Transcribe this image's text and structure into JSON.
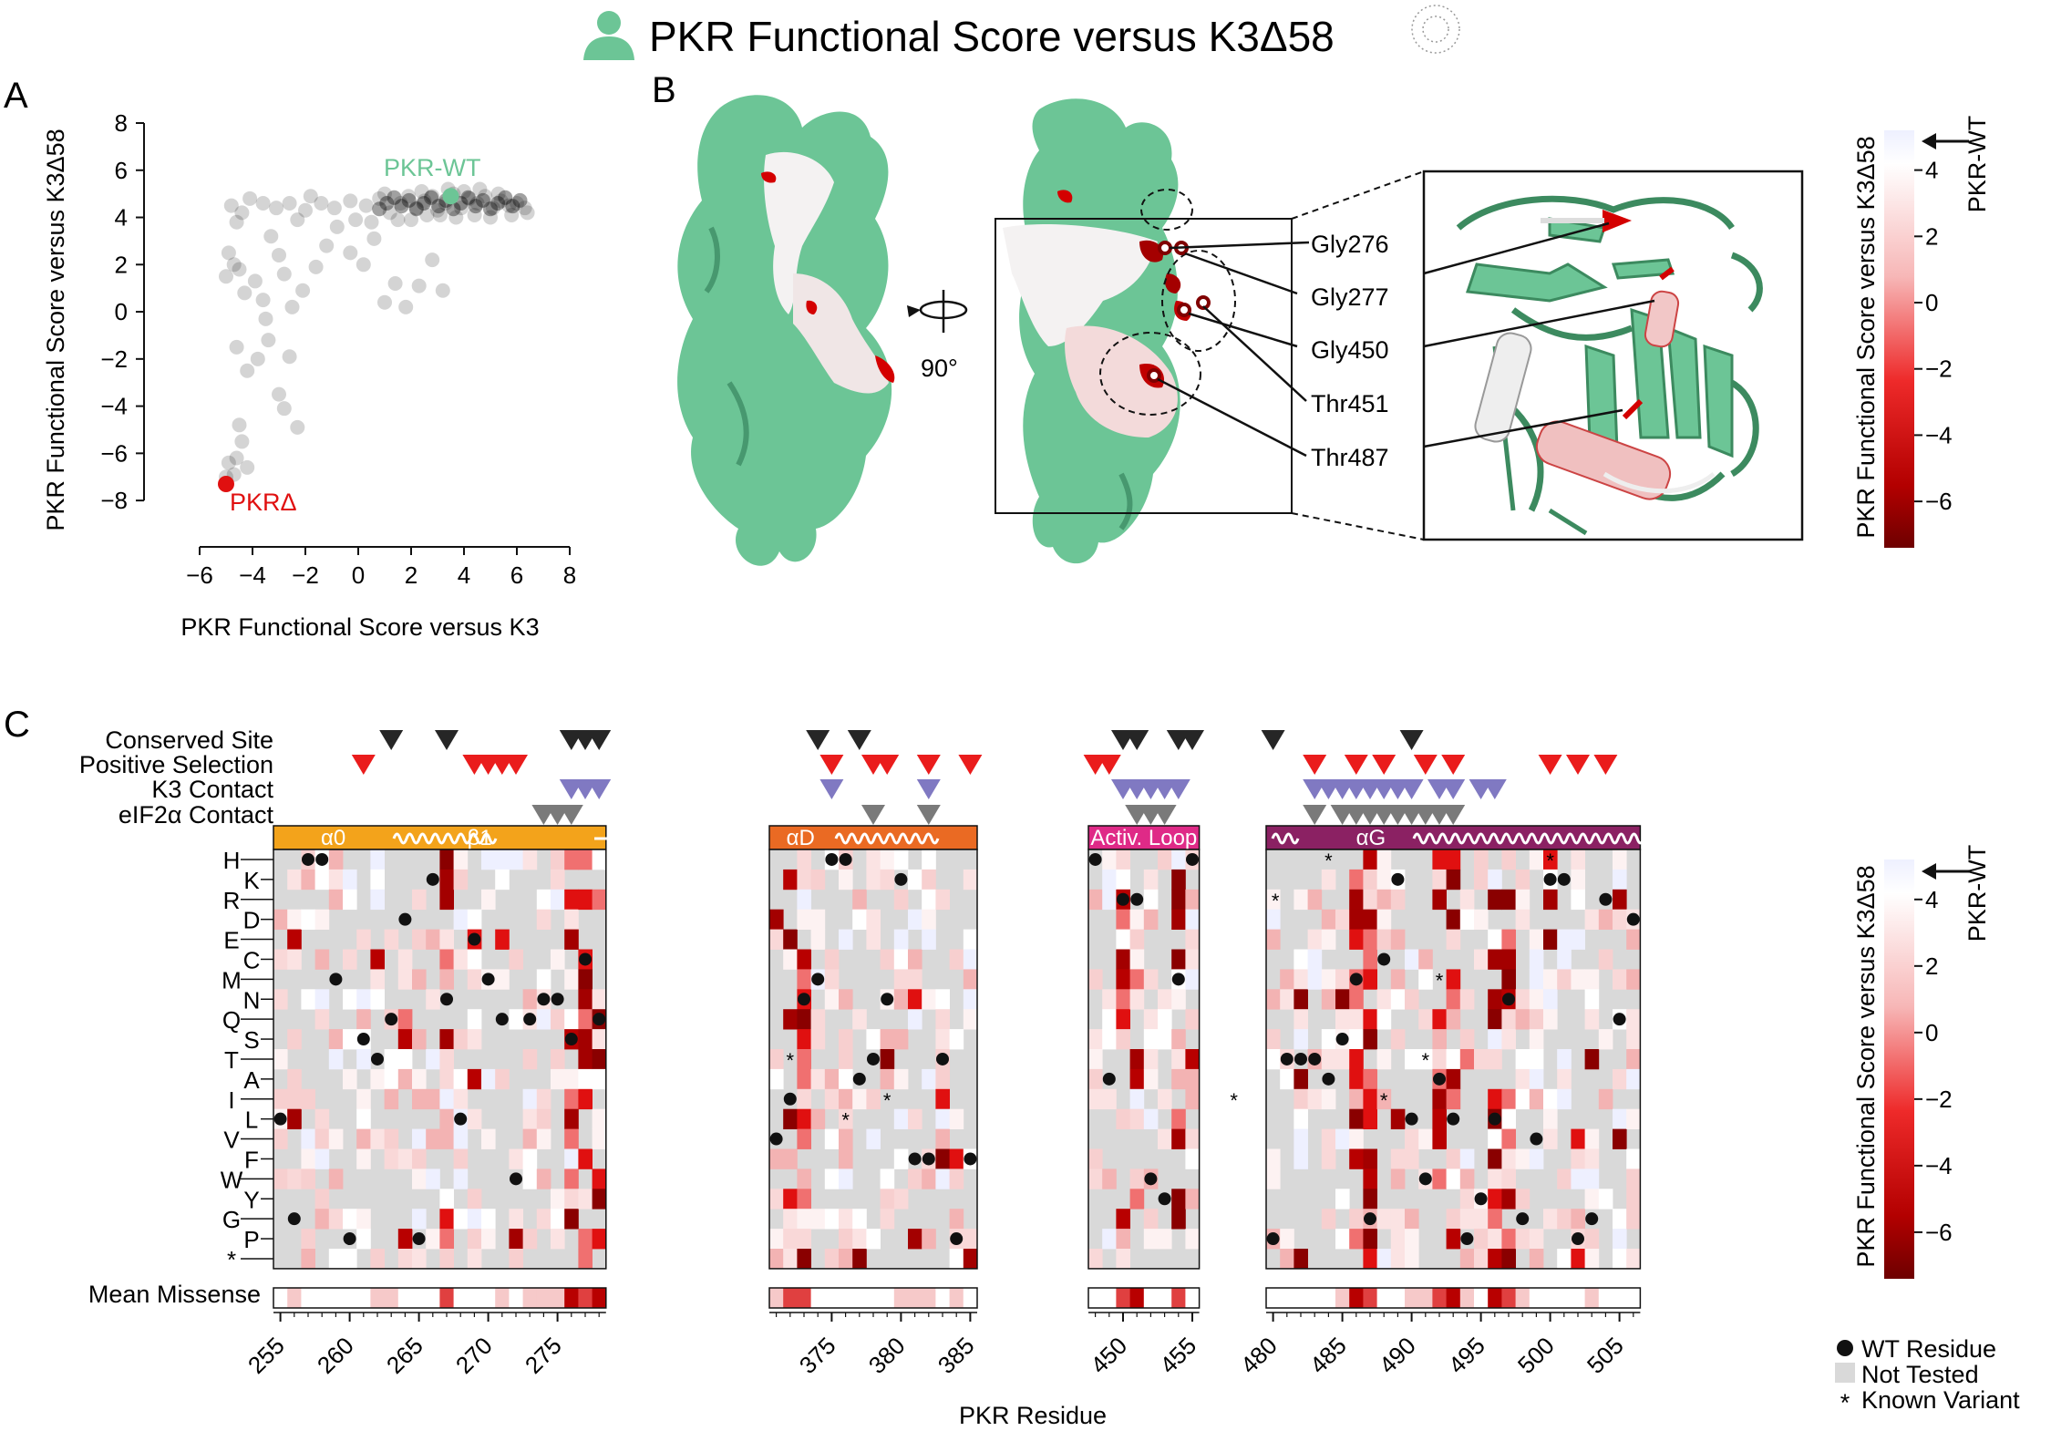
{
  "title": "PKR Functional Score versus K3Δ58",
  "colors": {
    "pkr_green": "#6cc596",
    "red": "#d40000",
    "dark_red": "#7a0000",
    "gray_cell": "#d9d9d9",
    "orange": "#f3a31b",
    "orange2": "#ea6a23",
    "magenta": "#df2a87",
    "purple": "#8b2163",
    "tri_black": "#262626",
    "tri_red": "#ea1c1c",
    "tri_purple": "#8079c2",
    "tri_gray": "#7a7a7a"
  },
  "panelA": {
    "letter": "A",
    "xlabel": "PKR Functional Score versus K3",
    "ylabel": "PKR Functional Score versus K3Δ58",
    "label_wt": "PKR-WT",
    "label_delta": "PKRΔ",
    "xticks": [
      "−6",
      "−4",
      "−2",
      "0",
      "2",
      "4",
      "6",
      "8"
    ],
    "yticks": [
      "8",
      "6",
      "4",
      "2",
      "0",
      "−2",
      "−4",
      "−6",
      "−8"
    ]
  },
  "panelB": {
    "letter": "B",
    "rotation": "90°",
    "residues": [
      "Gly276",
      "Gly277",
      "Gly450",
      "Thr451",
      "Thr487"
    ],
    "colorbar_label": "PKR Functional Score versus K3Δ58",
    "colorbar_ticks": [
      "4",
      "2",
      "0",
      "−2",
      "−4",
      "−6"
    ],
    "wt_marker": "PKR-WT"
  },
  "panelC": {
    "letter": "C",
    "annotation_rows": [
      "Conserved Site",
      "Positive Selection",
      "K3 Contact",
      "eIF2α Contact"
    ],
    "domain_labels": {
      "a0": "α0",
      "b1": "β1",
      "aD": "αD",
      "act": "Activ. Loop",
      "aG": "αG"
    },
    "amino_acids_left": [
      "H",
      "R",
      "E",
      "M",
      "Q",
      "T",
      "I",
      "V",
      "W",
      "G",
      "*"
    ],
    "amino_acids_right": [
      "K",
      "D",
      "C",
      "N",
      "S",
      "A",
      "L",
      "F",
      "Y",
      "P"
    ],
    "mean_label": "Mean Missense",
    "xlabel": "PKR Residue",
    "colorbar_label": "PKR Functional Score versus K3Δ58",
    "colorbar_ticks": [
      "4",
      "2",
      "0",
      "−2",
      "−4",
      "−6"
    ],
    "wt_marker": "PKR-WT",
    "legend": {
      "wt": "WT Residue",
      "not_tested": "Not Tested",
      "known": "Known Variant"
    },
    "block1_ticks": [
      "255",
      "260",
      "265",
      "270",
      "275"
    ],
    "block2_ticks": [
      "375",
      "380",
      "385"
    ],
    "block3_ticks": [
      "450",
      "455"
    ],
    "block4_ticks": [
      "480",
      "485",
      "490",
      "495",
      "500",
      "505"
    ]
  },
  "chart_data": {
    "type": "scatter",
    "title": "PKR Functional Score versus K3Δ58",
    "xlabel": "PKR Functional Score versus K3",
    "ylabel": "PKR Functional Score versus K3Δ58",
    "xlim": [
      -7,
      8
    ],
    "ylim": [
      -9,
      8
    ],
    "highlight": [
      {
        "label": "PKR-WT",
        "x": 3.5,
        "y": 4.9
      },
      {
        "label": "PKRΔ",
        "x": -5.0,
        "y": -7.3
      }
    ],
    "points": [
      [
        -4.8,
        4.5
      ],
      [
        -4.6,
        3.8
      ],
      [
        -4.4,
        4.2
      ],
      [
        -4.9,
        2.5
      ],
      [
        -4.7,
        2.0
      ],
      [
        -5.0,
        1.5
      ],
      [
        -4.5,
        1.8
      ],
      [
        -4.3,
        0.8
      ],
      [
        -3.9,
        1.3
      ],
      [
        -3.6,
        0.5
      ],
      [
        -3.3,
        3.2
      ],
      [
        -3.0,
        2.4
      ],
      [
        -2.8,
        1.6
      ],
      [
        -2.5,
        0.2
      ],
      [
        -2.1,
        0.9
      ],
      [
        -1.6,
        1.9
      ],
      [
        -1.2,
        2.8
      ],
      [
        -0.8,
        3.6
      ],
      [
        -0.3,
        2.5
      ],
      [
        0.2,
        2.0
      ],
      [
        0.6,
        3.1
      ],
      [
        1.0,
        0.4
      ],
      [
        1.4,
        1.2
      ],
      [
        1.8,
        0.2
      ],
      [
        2.3,
        1.1
      ],
      [
        2.8,
        2.2
      ],
      [
        3.2,
        0.9
      ],
      [
        -3.5,
        -0.3
      ],
      [
        -3.4,
        -1.2
      ],
      [
        -3.8,
        -2.0
      ],
      [
        -2.6,
        -1.9
      ],
      [
        -3.0,
        -3.5
      ],
      [
        -2.8,
        -4.1
      ],
      [
        -2.3,
        -4.9
      ],
      [
        -4.6,
        -1.5
      ],
      [
        -4.2,
        -2.5
      ],
      [
        -4.5,
        -4.8
      ],
      [
        -4.4,
        -5.5
      ],
      [
        -4.6,
        -6.2
      ],
      [
        -4.9,
        -6.4
      ],
      [
        -4.7,
        -6.9
      ],
      [
        -5.0,
        -7.0
      ],
      [
        -4.2,
        -6.6
      ],
      [
        -3.6,
        4.6
      ],
      [
        -3.1,
        4.4
      ],
      [
        -2.6,
        4.6
      ],
      [
        -2.0,
        4.3
      ],
      [
        -1.4,
        4.6
      ],
      [
        -0.9,
        4.4
      ],
      [
        -0.3,
        4.7
      ],
      [
        0.3,
        4.5
      ],
      [
        0.8,
        4.8
      ],
      [
        1.2,
        4.2
      ],
      [
        1.6,
        4.6
      ],
      [
        1.9,
        4.9
      ],
      [
        2.2,
        4.4
      ],
      [
        2.5,
        4.7
      ],
      [
        2.8,
        4.9
      ],
      [
        3.0,
        4.3
      ],
      [
        3.3,
        4.6
      ],
      [
        3.6,
        5.0
      ],
      [
        3.9,
        4.4
      ],
      [
        4.2,
        4.8
      ],
      [
        4.5,
        4.6
      ],
      [
        4.8,
        4.9
      ],
      [
        5.1,
        4.4
      ],
      [
        5.4,
        4.7
      ],
      [
        5.7,
        4.5
      ],
      [
        6.0,
        4.6
      ],
      [
        6.3,
        4.4
      ],
      [
        1.5,
        3.9
      ],
      [
        2.0,
        3.9
      ],
      [
        2.6,
        4.1
      ],
      [
        3.1,
        4.1
      ],
      [
        3.7,
        4.0
      ],
      [
        4.4,
        4.1
      ],
      [
        5.0,
        4.0
      ],
      [
        5.8,
        4.1
      ],
      [
        6.4,
        4.2
      ],
      [
        2.4,
        5.1
      ],
      [
        3.4,
        5.2
      ],
      [
        4.0,
        5.1
      ],
      [
        4.6,
        5.2
      ],
      [
        5.3,
        5.0
      ],
      [
        1.0,
        5.0
      ],
      [
        -1.8,
        4.9
      ],
      [
        -4.1,
        4.8
      ],
      [
        -0.1,
        3.9
      ],
      [
        0.5,
        3.8
      ],
      [
        -2.3,
        3.9
      ]
    ]
  }
}
